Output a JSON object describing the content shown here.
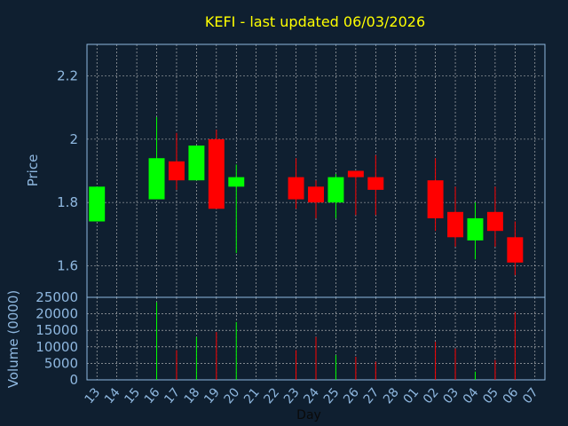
{
  "chart_data": {
    "type": "candlestick",
    "title": "KEFI - last updated 06/03/2026",
    "ylabel_price": "Price",
    "ylabel_volume": "Volume (0000)",
    "xlabel": "Day",
    "price_ylim": [
      1.5,
      2.3
    ],
    "price_ticks": [
      1.6,
      1.8,
      2.0,
      2.2
    ],
    "price_tick_labels": [
      "1.6",
      "1.8",
      "2",
      "2.2"
    ],
    "volume_ylim": [
      0,
      25000
    ],
    "volume_ticks": [
      0,
      5000,
      10000,
      15000,
      20000,
      25000
    ],
    "volume_tick_labels": [
      "0",
      "5000",
      "10000",
      "15000",
      "20000",
      "25000"
    ],
    "x_labels": [
      "13",
      "14",
      "15",
      "16",
      "17",
      "18",
      "19",
      "20",
      "21",
      "22",
      "23",
      "24",
      "25",
      "26",
      "27",
      "28",
      "01",
      "02",
      "03",
      "04",
      "05",
      "06",
      "07"
    ],
    "grid": true,
    "colors": {
      "up": "#00ff00",
      "down": "#ff0000",
      "background": "#0f1f30",
      "title": "#ffff00",
      "axis": "#8fb8e0",
      "grid": "#c8c8c8"
    },
    "candles": [
      {
        "x": "13",
        "open": 1.74,
        "high": 1.85,
        "low": 1.74,
        "close": 1.85,
        "volume": 0
      },
      {
        "x": "16",
        "open": 1.81,
        "high": 2.07,
        "low": 1.81,
        "close": 1.94,
        "volume": 23500
      },
      {
        "x": "17",
        "open": 1.93,
        "high": 2.02,
        "low": 1.84,
        "close": 1.87,
        "volume": 9000
      },
      {
        "x": "18",
        "open": 1.87,
        "high": 1.98,
        "low": 1.87,
        "close": 1.98,
        "volume": 13000
      },
      {
        "x": "19",
        "open": 2.0,
        "high": 2.03,
        "low": 1.78,
        "close": 1.78,
        "volume": 14500
      },
      {
        "x": "20",
        "open": 1.85,
        "high": 1.92,
        "low": 1.64,
        "close": 1.88,
        "volume": 17500
      },
      {
        "x": "23",
        "open": 1.88,
        "high": 1.94,
        "low": 1.78,
        "close": 1.81,
        "volume": 9000
      },
      {
        "x": "24",
        "open": 1.85,
        "high": 1.87,
        "low": 1.75,
        "close": 1.8,
        "volume": 13000
      },
      {
        "x": "25",
        "open": 1.8,
        "high": 1.89,
        "low": 1.75,
        "close": 1.88,
        "volume": 7500
      },
      {
        "x": "26",
        "open": 1.9,
        "high": 1.9,
        "low": 1.76,
        "close": 1.88,
        "volume": 7000
      },
      {
        "x": "27",
        "open": 1.88,
        "high": 1.95,
        "low": 1.76,
        "close": 1.84,
        "volume": 5500
      },
      {
        "x": "02",
        "open": 1.87,
        "high": 1.94,
        "low": 1.71,
        "close": 1.75,
        "volume": 11500
      },
      {
        "x": "03",
        "open": 1.77,
        "high": 1.85,
        "low": 1.66,
        "close": 1.69,
        "volume": 9500
      },
      {
        "x": "04",
        "open": 1.68,
        "high": 1.8,
        "low": 1.62,
        "close": 1.75,
        "volume": 2500
      },
      {
        "x": "05",
        "open": 1.77,
        "high": 1.85,
        "low": 1.66,
        "close": 1.71,
        "volume": 6000
      },
      {
        "x": "06",
        "open": 1.69,
        "high": 1.74,
        "low": 1.57,
        "close": 1.61,
        "volume": 20500
      }
    ]
  }
}
